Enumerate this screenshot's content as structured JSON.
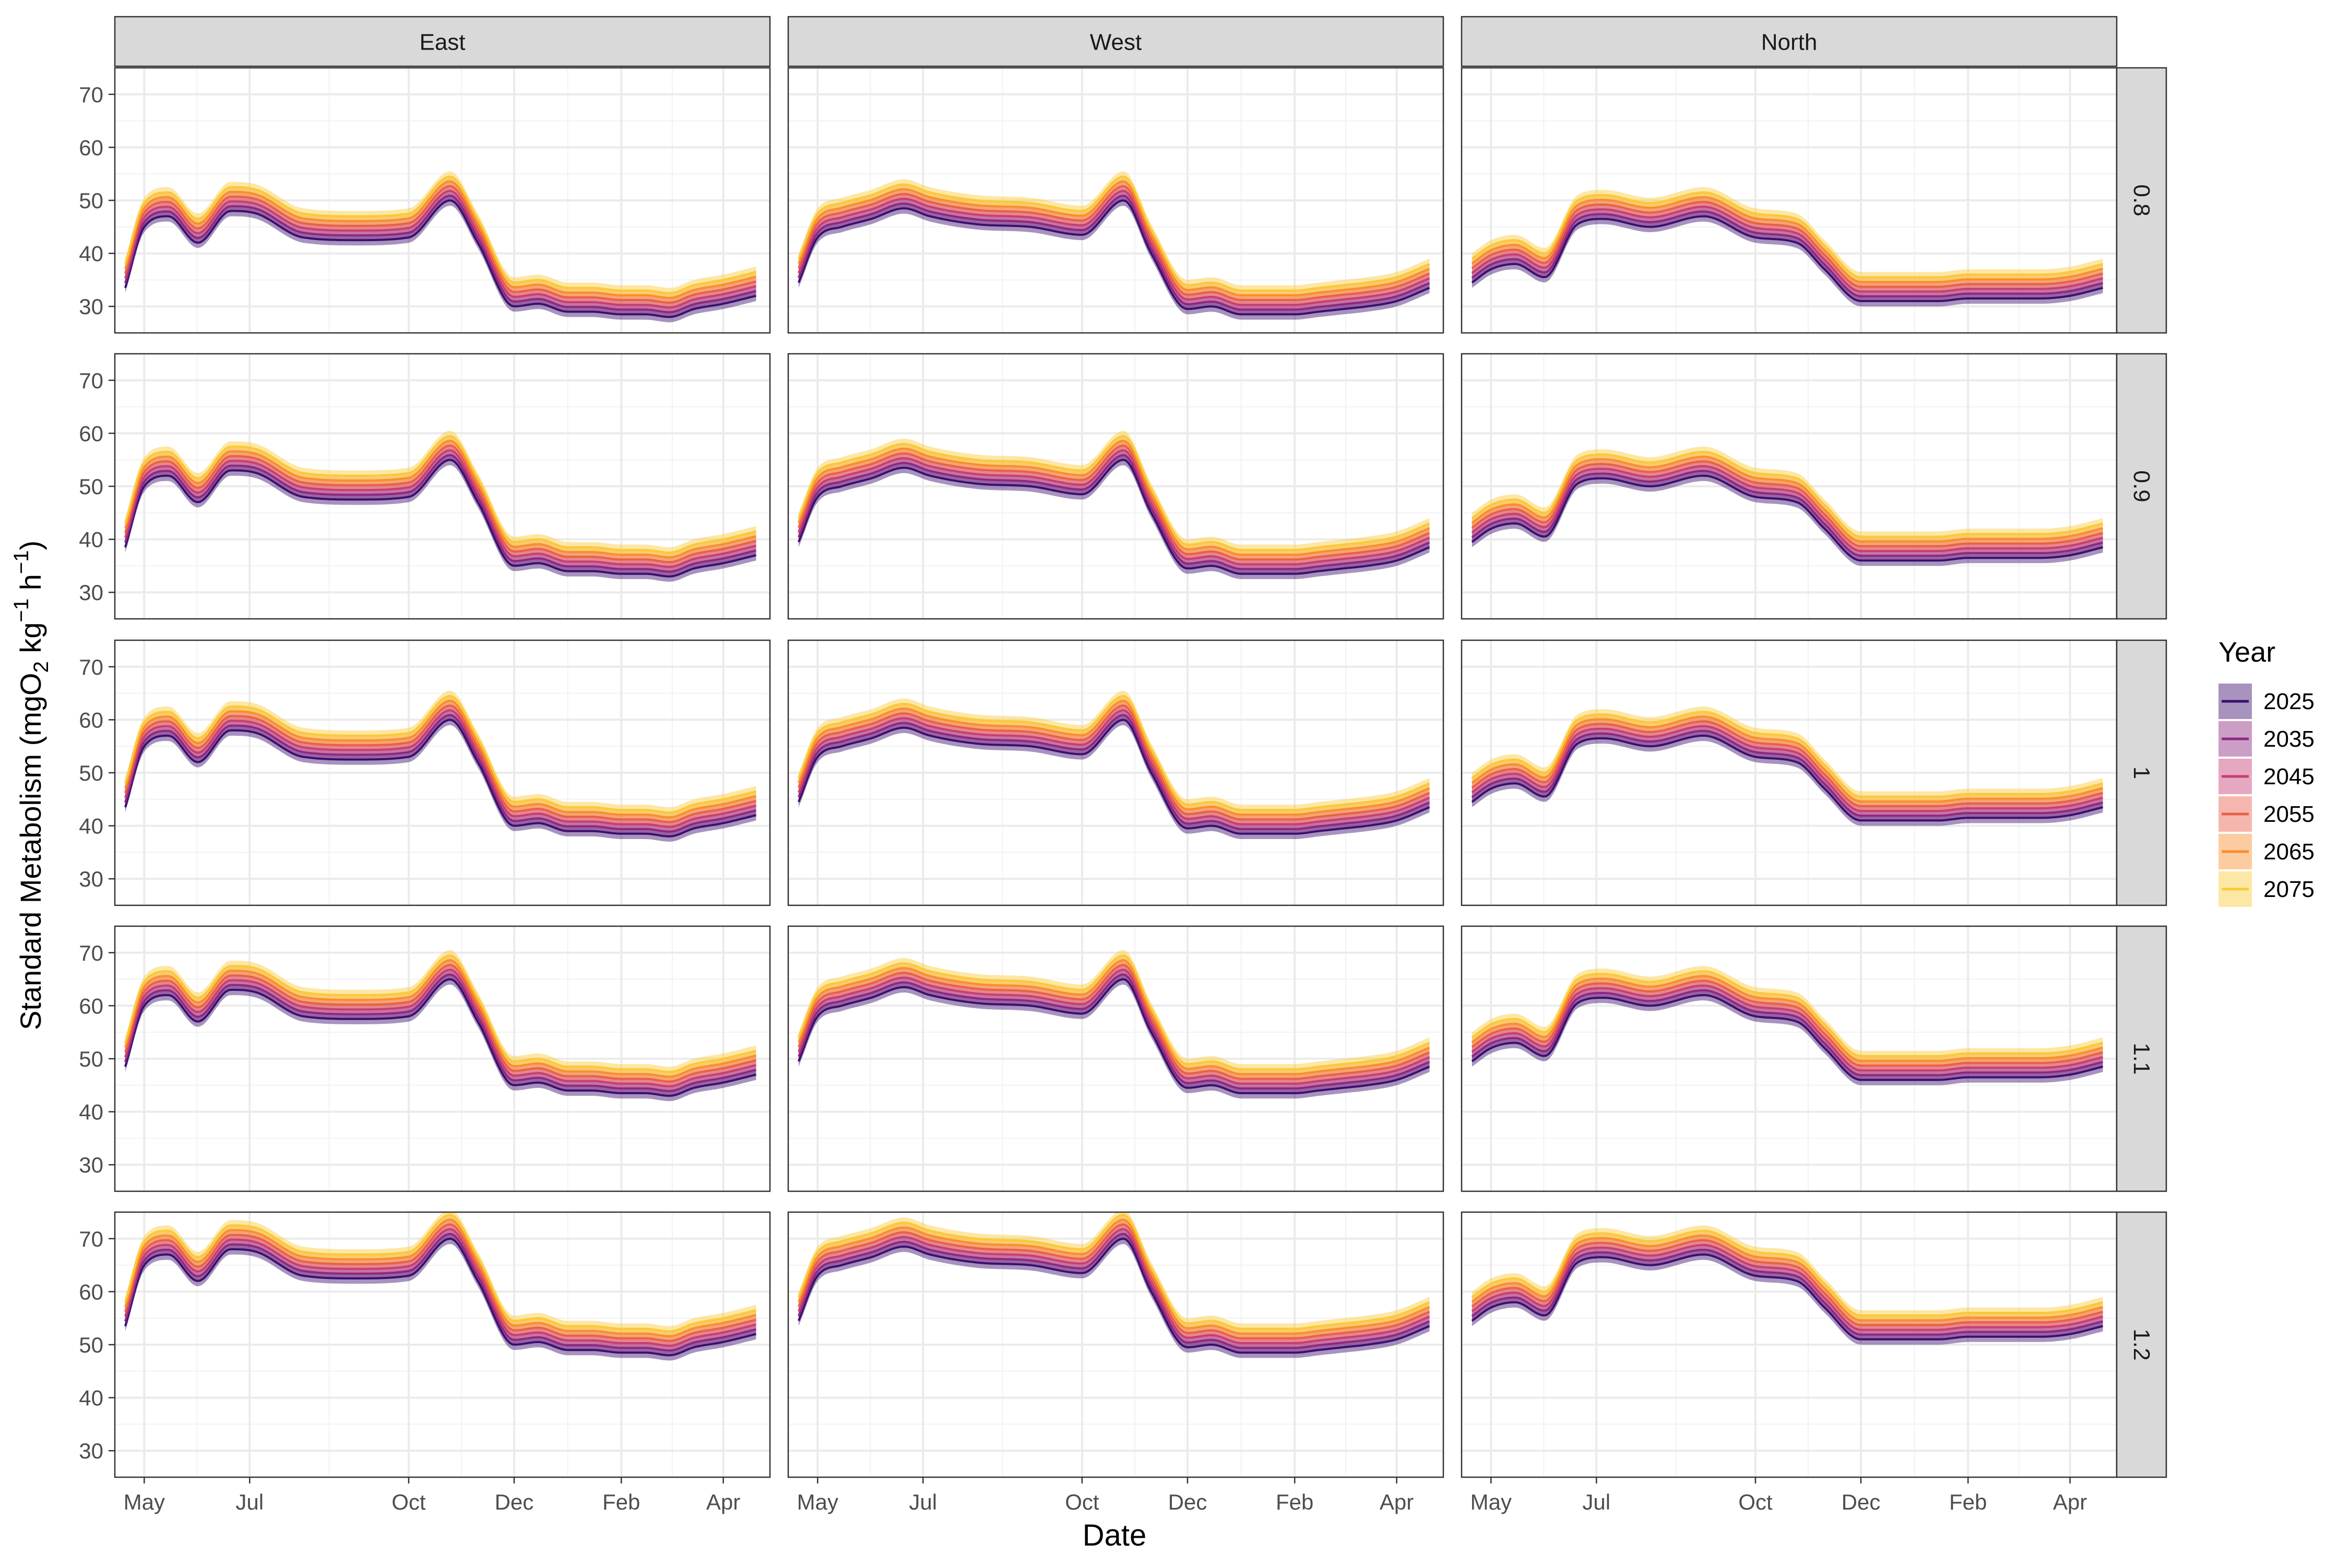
{
  "chart_data": {
    "type": "line",
    "xlabel": "Date",
    "ylabel": "Standard Metabolism (mgO₂ kg⁻¹ h⁻¹)",
    "ylabel_parts": {
      "a": "Standard Metabolism (mgO",
      "sub2": "2",
      "b": " kg",
      "sup1": "−1",
      "c": " h",
      "sup2": "−1",
      "d": ")"
    },
    "ylim": [
      25,
      75
    ],
    "yticks": [
      30,
      40,
      50,
      60,
      70
    ],
    "xlim": [
      "2024-04-14",
      "2025-04-28"
    ],
    "xticks": [
      {
        "date": "2024-05-01",
        "label": "May"
      },
      {
        "date": "2024-07-01",
        "label": "Jul"
      },
      {
        "date": "2024-10-01",
        "label": "Oct"
      },
      {
        "date": "2024-12-01",
        "label": "Dec"
      },
      {
        "date": "2025-02-01",
        "label": "Feb"
      },
      {
        "date": "2025-04-01",
        "label": "Apr"
      }
    ],
    "grid": true,
    "legend_position": "right",
    "legend_title": "Year",
    "columns": [
      "East",
      "West",
      "North"
    ],
    "rows": [
      "0.8",
      "0.9",
      "1",
      "1.1",
      "1.2"
    ],
    "series": [
      {
        "name": "2025",
        "color": "#3b0f6f"
      },
      {
        "name": "2035",
        "color": "#8c2981"
      },
      {
        "name": "2045",
        "color": "#c73e74"
      },
      {
        "name": "2055",
        "color": "#e8604a"
      },
      {
        "name": "2065",
        "color": "#f98e2d"
      },
      {
        "name": "2075",
        "color": "#fac937"
      }
    ],
    "row_offset_per_step": 5,
    "year_offset_per_decade": 0.9,
    "ribbon_half_width": 1.0,
    "x": [
      "2024-04-20",
      "2024-05-01",
      "2024-05-15",
      "2024-06-01",
      "2024-06-20",
      "2024-07-05",
      "2024-08-01",
      "2024-09-01",
      "2024-10-01",
      "2024-10-25",
      "2024-11-10",
      "2024-12-01",
      "2024-12-15",
      "2025-01-01",
      "2025-01-15",
      "2025-02-01",
      "2025-02-15",
      "2025-03-01",
      "2025-03-15",
      "2025-04-01",
      "2025-04-20"
    ],
    "profiles": {
      "East": [
        33.5,
        45,
        47,
        42,
        48,
        47.5,
        43,
        42.5,
        43,
        50,
        42,
        30,
        30.5,
        29,
        29,
        28.5,
        28.5,
        28,
        29.5,
        30.5,
        32
      ],
      "West": [
        34.5,
        43,
        45,
        46.5,
        48.5,
        47,
        45.5,
        45,
        43.5,
        50,
        40,
        29.5,
        30,
        28.5,
        28.5,
        28.5,
        29,
        29.5,
        30,
        31,
        33.5
      ],
      "North": [
        34.5,
        37,
        38,
        35.5,
        45.5,
        46.5,
        45,
        47,
        43,
        42,
        37,
        31,
        31,
        31,
        31,
        31.5,
        31.5,
        31.5,
        31.5,
        32,
        33.5
      ]
    }
  }
}
